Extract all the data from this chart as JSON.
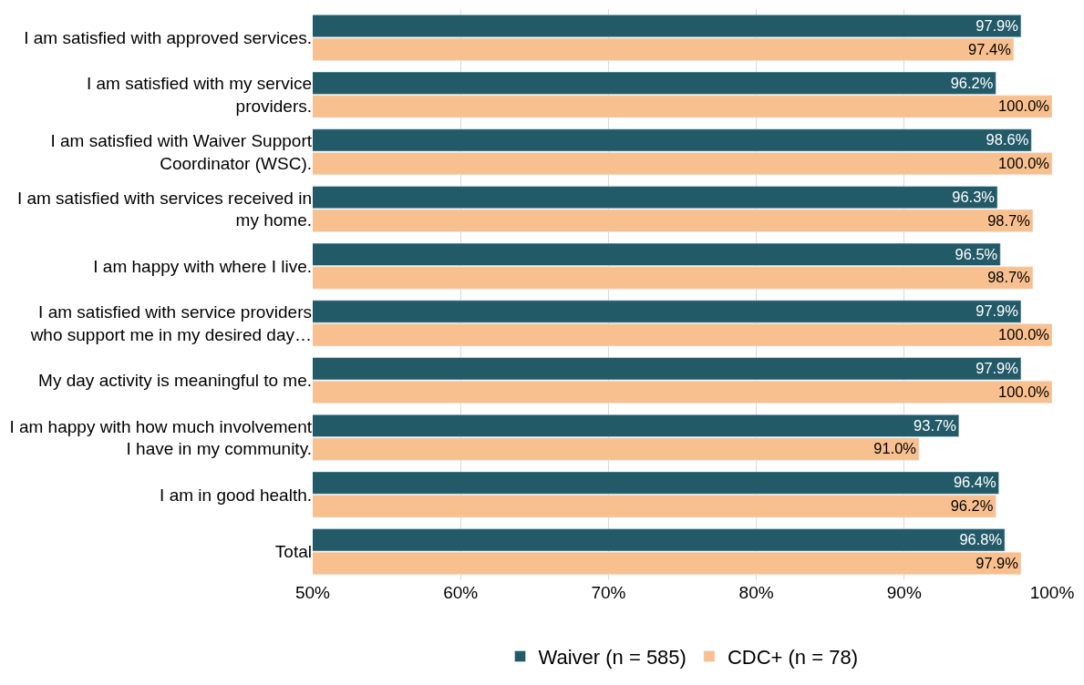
{
  "chart_data": {
    "type": "bar",
    "orientation": "horizontal",
    "categories": [
      "I am satisfied with approved services.",
      "I am satisfied with my service\nproviders.",
      "I am satisfied with Waiver Support\nCoordinator (WSC).",
      "I am satisfied with services received in\nmy home.",
      "I am happy with where I live.",
      "I am satisfied with service providers\nwho support me in my desired day…",
      "My day activity is meaningful to me.",
      "I am happy with how much involvement\nI have in my community.",
      "I am in good health.",
      "Total"
    ],
    "series": [
      {
        "name": "Waiver (n = 585)",
        "color": "#235a68",
        "values": [
          97.9,
          96.2,
          98.6,
          96.3,
          96.5,
          97.9,
          97.9,
          93.7,
          96.4,
          96.8
        ],
        "value_labels": [
          "97.9%",
          "96.2%",
          "98.6%",
          "96.3%",
          "96.5%",
          "97.9%",
          "97.9%",
          "93.7%",
          "96.4%",
          "96.8%"
        ]
      },
      {
        "name": "CDC+ (n = 78)",
        "color": "#f9c08f",
        "values": [
          97.4,
          100.0,
          100.0,
          98.7,
          98.7,
          100.0,
          100.0,
          91.0,
          96.2,
          97.9
        ],
        "value_labels": [
          "97.4%",
          "100.0%",
          "100.0%",
          "98.7%",
          "98.7%",
          "100.0%",
          "100.0%",
          "91.0%",
          "96.2%",
          "97.9%"
        ]
      }
    ],
    "xlim": [
      50,
      100
    ],
    "xticks": [
      {
        "value": 50,
        "label": "50%"
      },
      {
        "value": 60,
        "label": "60%"
      },
      {
        "value": 70,
        "label": "70%"
      },
      {
        "value": 80,
        "label": "80%"
      },
      {
        "value": 90,
        "label": "90%"
      },
      {
        "value": 100,
        "label": "100%"
      }
    ],
    "grid": "x",
    "legend": "bottom"
  }
}
